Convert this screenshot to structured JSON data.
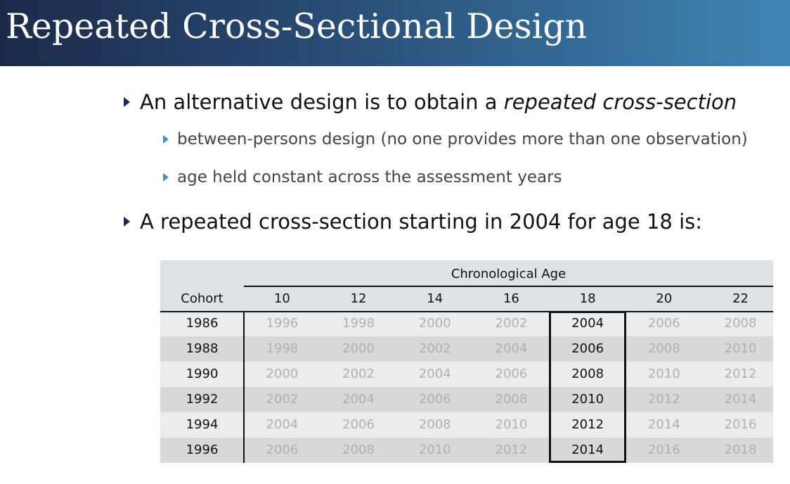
{
  "slide": {
    "title": "Repeated Cross-Sectional Design",
    "bullets": {
      "b1_pre": "An alternative design is to obtain a ",
      "b1_em": "repeated cross-section",
      "sub1": "between-persons design (no one provides more than one observation)",
      "sub2": "age held constant across the assessment years",
      "b2": "A repeated cross-section starting in 2004  for age 18 is:"
    }
  },
  "table": {
    "group_header": "Chronological Age",
    "row_header": "Cohort",
    "ages": [
      "10",
      "12",
      "14",
      "16",
      "18",
      "20",
      "22"
    ],
    "highlighted_age": "18",
    "rows": [
      {
        "cohort": "1986",
        "values": [
          "1996",
          "1998",
          "2000",
          "2002",
          "2004",
          "2006",
          "2008"
        ]
      },
      {
        "cohort": "1988",
        "values": [
          "1998",
          "2000",
          "2002",
          "2004",
          "2006",
          "2008",
          "2010"
        ]
      },
      {
        "cohort": "1990",
        "values": [
          "2000",
          "2002",
          "2004",
          "2006",
          "2008",
          "2010",
          "2012"
        ]
      },
      {
        "cohort": "1992",
        "values": [
          "2002",
          "2004",
          "2006",
          "2008",
          "2010",
          "2012",
          "2014"
        ]
      },
      {
        "cohort": "1994",
        "values": [
          "2004",
          "2006",
          "2008",
          "2010",
          "2012",
          "2014",
          "2016"
        ]
      },
      {
        "cohort": "1996",
        "values": [
          "2006",
          "2008",
          "2010",
          "2012",
          "2014",
          "2016",
          "2018"
        ]
      }
    ],
    "colors": {
      "header_bg": "#dfe2e5",
      "row_light": "#ececec",
      "row_dark": "#d8d8d8",
      "dim_text": "#b0b0b0"
    }
  }
}
